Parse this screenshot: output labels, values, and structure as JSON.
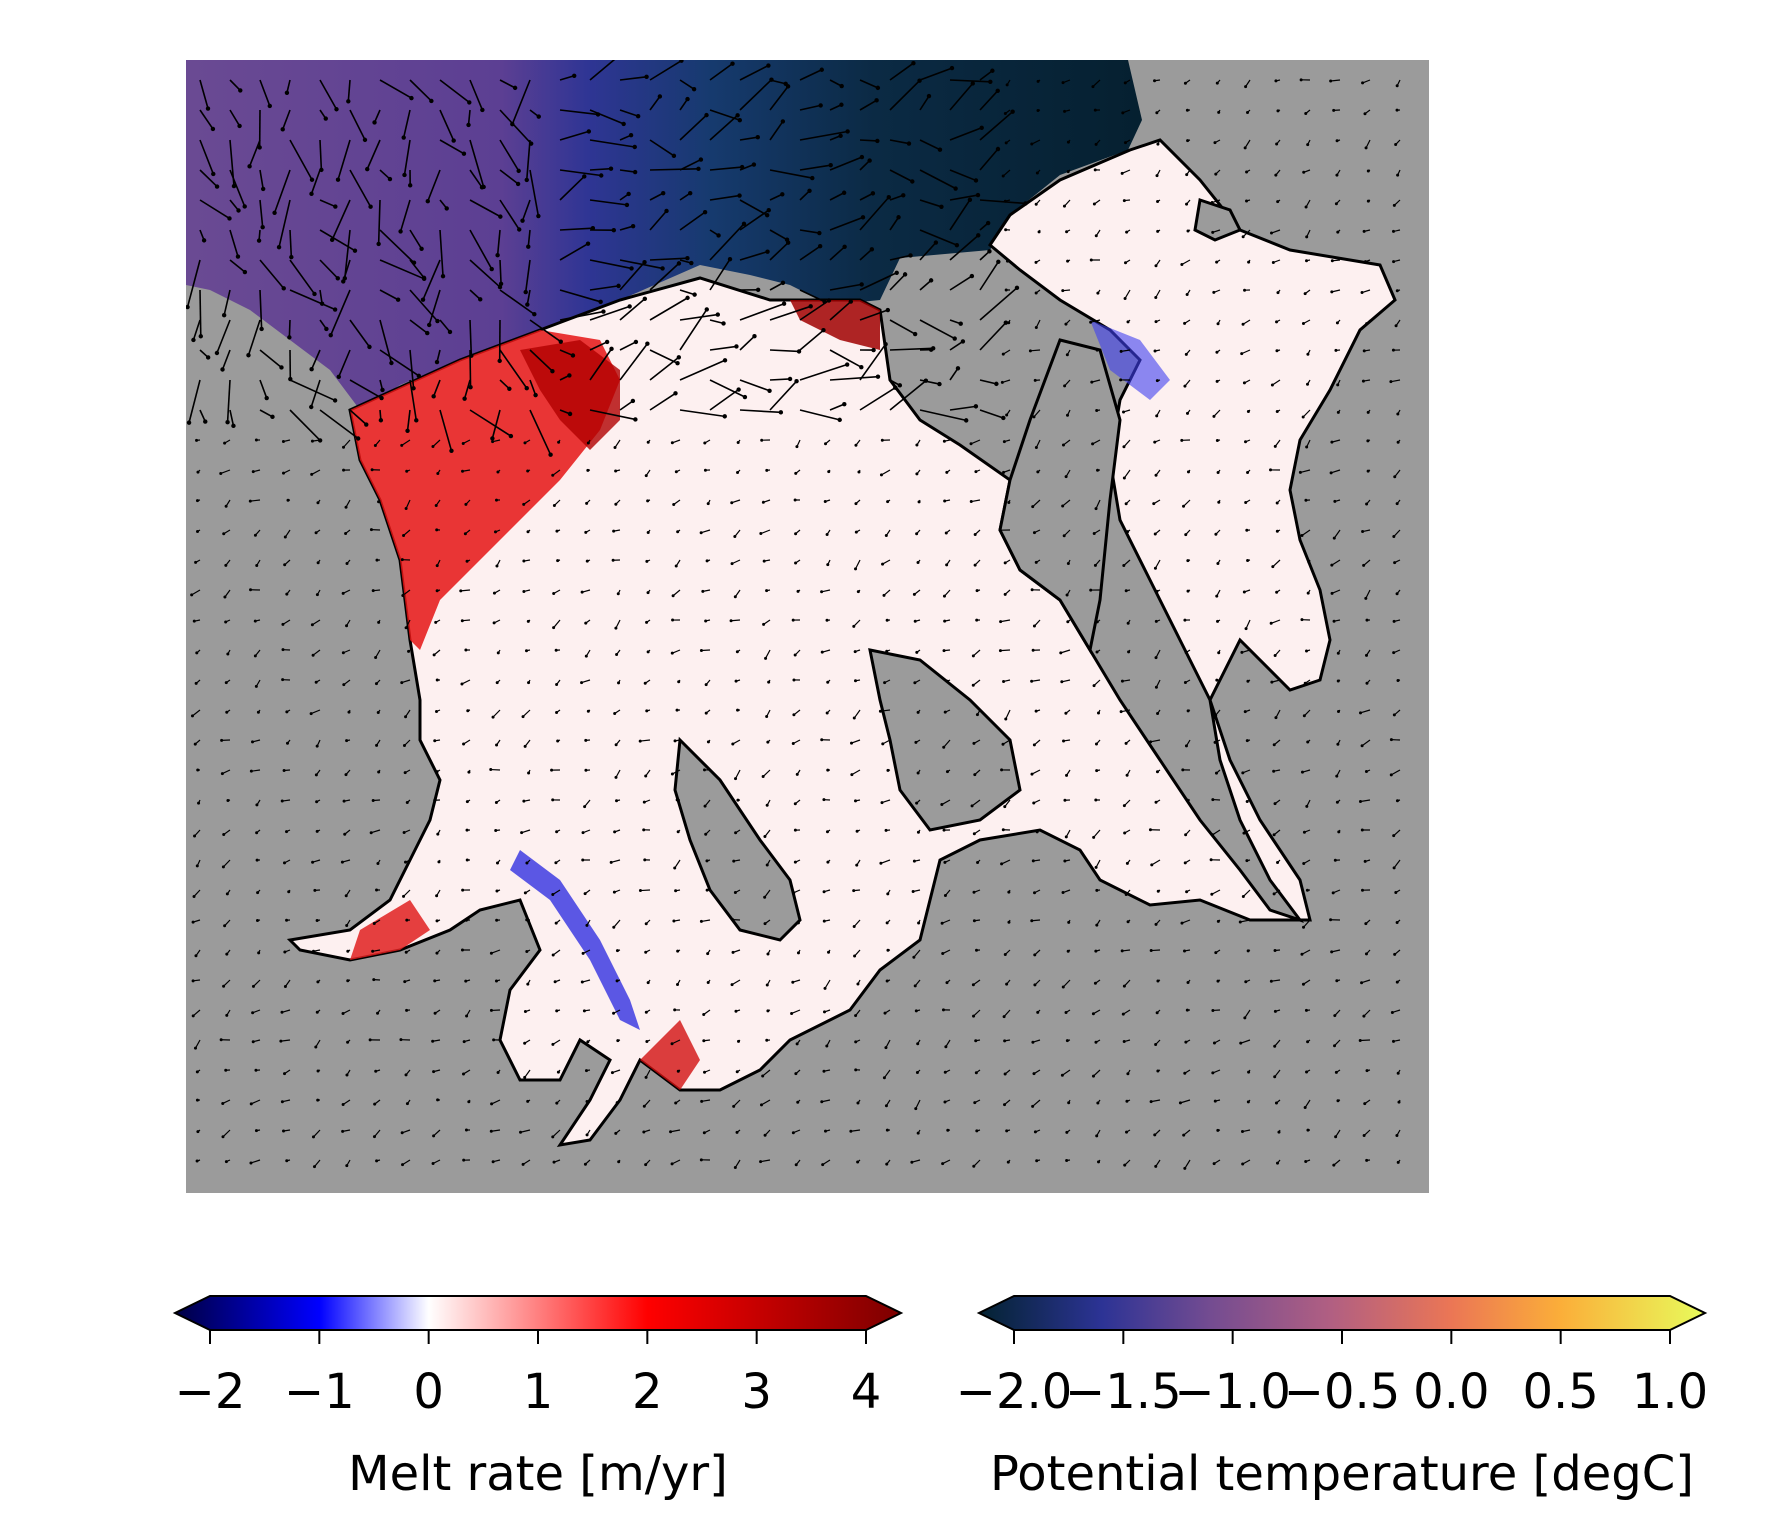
{
  "chart_data": [
    {
      "type": "heatmap",
      "title": "",
      "description_map": "melt-rate-and-ocean-temperature-map",
      "background_color": "#9b9b9b",
      "grounded_ice_color": "#9b9b9b",
      "has_velocity_arrows": true,
      "grid": false
    },
    {
      "type": "colorbar",
      "label": "Melt rate [m/yr]",
      "range": [
        -2,
        4
      ],
      "ticks": [
        -2,
        -1,
        0,
        1,
        2,
        3,
        4
      ],
      "tick_labels": [
        "−2",
        "−1",
        "0",
        "1",
        "2",
        "3",
        "4"
      ],
      "extend": "both",
      "colormap": "seismic",
      "stops": [
        {
          "value": -2.25,
          "color": "#00004c"
        },
        {
          "value": -1,
          "color": "#0000ff"
        },
        {
          "value": 0,
          "color": "#ffffff"
        },
        {
          "value": 2,
          "color": "#ff0000"
        },
        {
          "value": 4.25,
          "color": "#800000"
        }
      ]
    },
    {
      "type": "colorbar",
      "label": "Potential temperature [degC]",
      "range": [
        -2.0,
        1.0
      ],
      "ticks": [
        -2.0,
        -1.5,
        -1.0,
        -0.5,
        0.0,
        0.5,
        1.0
      ],
      "tick_labels": [
        "−2.0",
        "−1.5",
        "−1.0",
        "−0.5",
        "0.0",
        "0.5",
        "1.0"
      ],
      "extend": "both",
      "colormap": "thermal",
      "stops": [
        {
          "value": -2.15,
          "color": "#042333"
        },
        {
          "value": -1.6,
          "color": "#2c3395"
        },
        {
          "value": -1.1,
          "color": "#744c91"
        },
        {
          "value": -0.55,
          "color": "#b15f82"
        },
        {
          "value": 0.0,
          "color": "#eb7655"
        },
        {
          "value": 0.5,
          "color": "#fbae39"
        },
        {
          "value": 1.15,
          "color": "#e8fa5b"
        }
      ]
    }
  ]
}
